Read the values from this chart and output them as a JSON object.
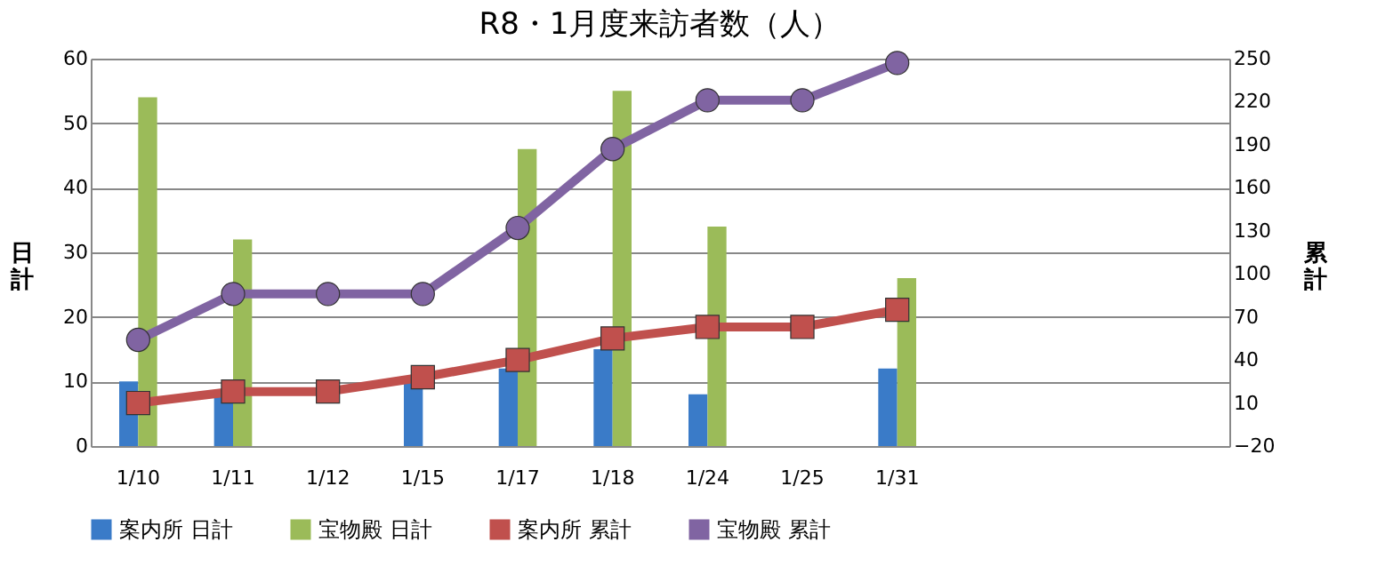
{
  "chart_data": {
    "type": "bar",
    "title": "R8・1月度来訪者数（人）",
    "categories": [
      "1/10",
      "1/11",
      "1/12",
      "1/15",
      "1/17",
      "1/18",
      "1/24",
      "1/25",
      "1/31",
      null,
      null,
      null
    ],
    "ylabel": "日計",
    "y2label": "累計",
    "series": [
      {
        "name": "案内所 日計",
        "color": "#3a7bc8",
        "values": [
          10,
          8,
          0,
          10,
          12,
          15,
          8,
          0,
          12,
          null,
          null,
          null
        ]
      },
      {
        "name": "宝物殿 日計",
        "color": "#9bbb59",
        "values": [
          54,
          32,
          0,
          0,
          46,
          55,
          34,
          0,
          26,
          null,
          null,
          null
        ]
      },
      {
        "name": "案内所 累計",
        "type": "line",
        "axis": "y2",
        "marker": "square",
        "color": "#c0504d",
        "values": [
          10,
          18,
          18,
          28,
          40,
          55,
          63,
          63,
          75,
          null,
          null,
          null
        ]
      },
      {
        "name": "宝物殿 累計",
        "type": "line",
        "axis": "y2",
        "marker": "circle",
        "color": "#8064a2",
        "values": [
          54,
          86,
          86,
          86,
          132,
          187,
          221,
          221,
          247,
          null,
          null,
          null
        ]
      }
    ],
    "ylim": [
      0,
      60
    ],
    "yticks": [
      0,
      10,
      20,
      30,
      40,
      50,
      60
    ],
    "y2lim": [
      -20,
      250
    ],
    "y2ticks": [
      -20,
      10,
      40,
      70,
      100,
      130,
      160,
      190,
      220,
      250
    ],
    "grid": "y",
    "legend": "bottom"
  }
}
